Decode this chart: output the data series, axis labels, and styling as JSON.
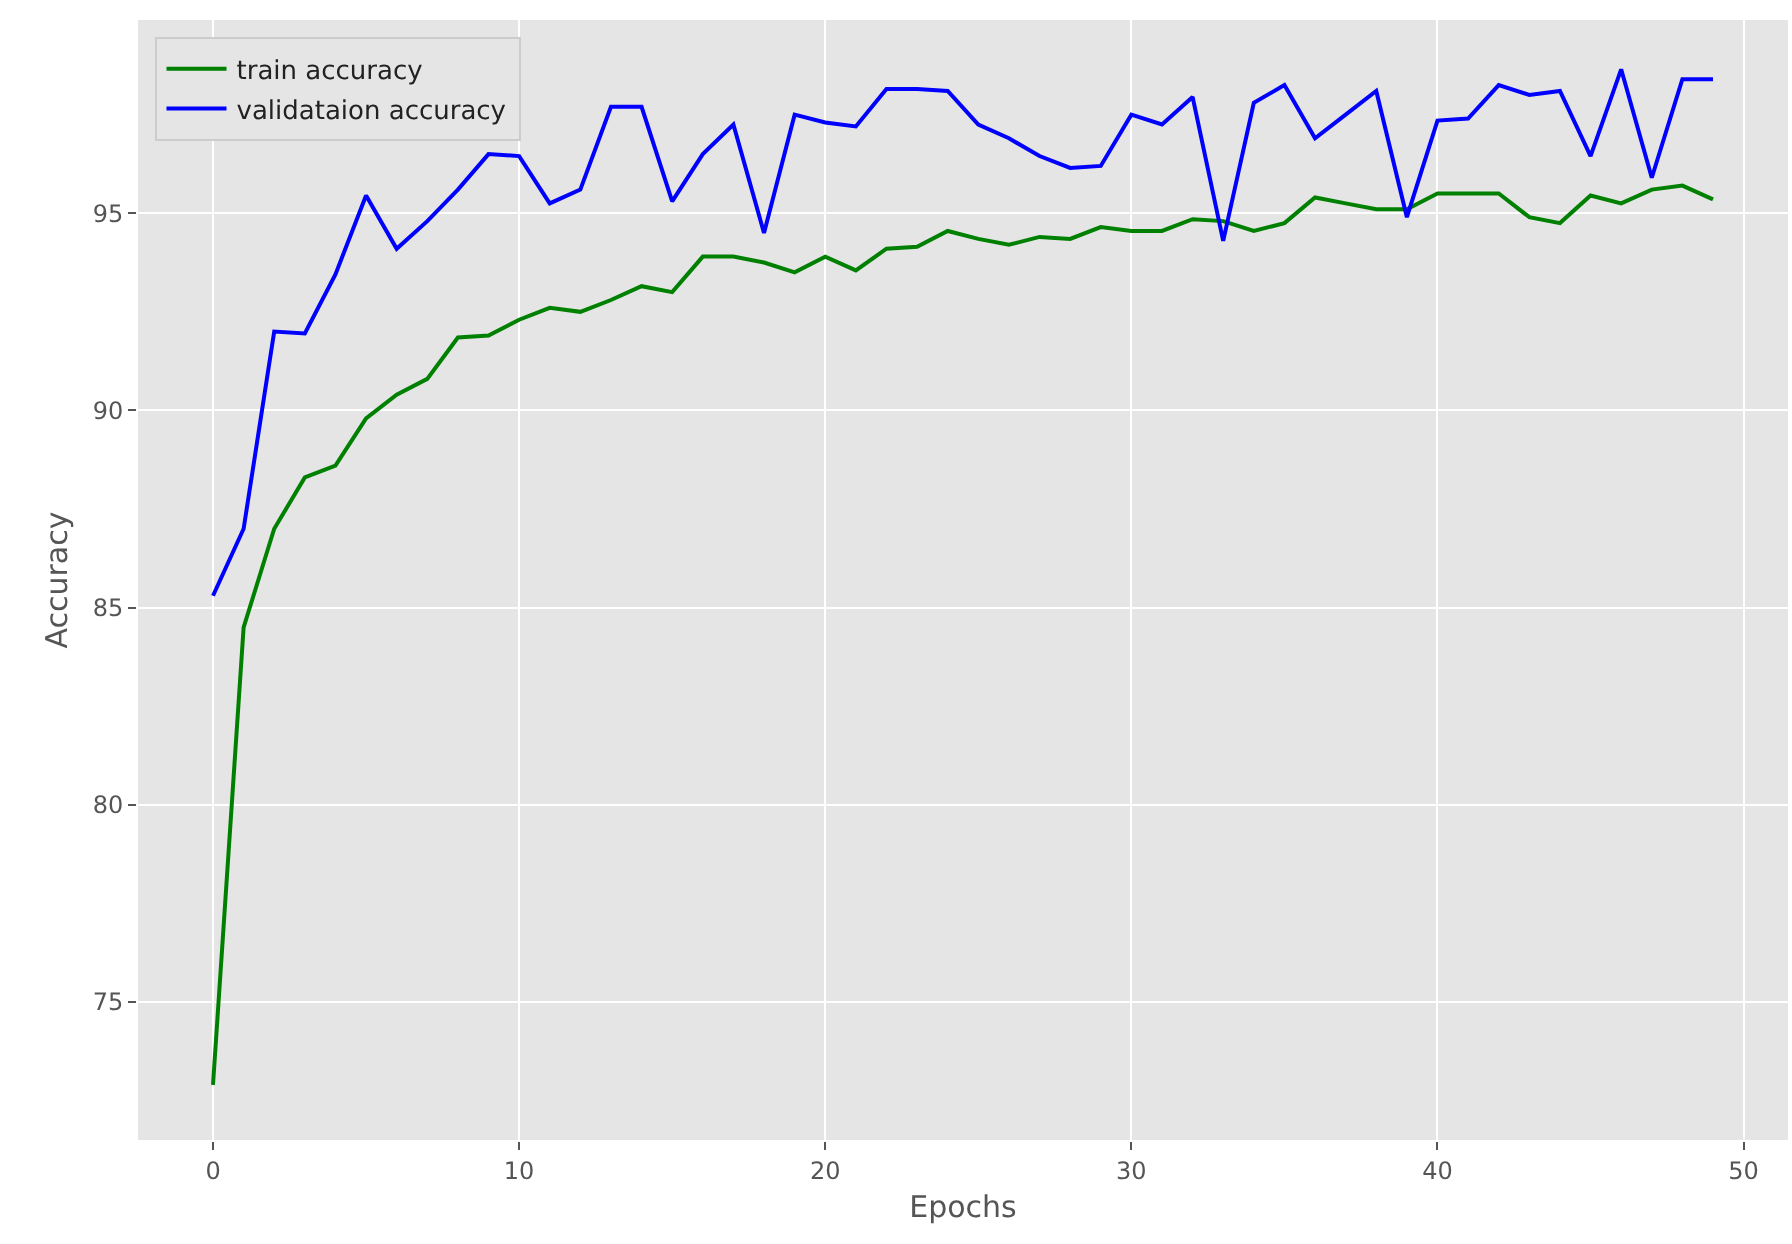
{
  "chart_data": {
    "type": "line",
    "xlabel": "Epochs",
    "ylabel": "Accuracy",
    "x": [
      0,
      1,
      2,
      3,
      4,
      5,
      6,
      7,
      8,
      9,
      10,
      11,
      12,
      13,
      14,
      15,
      16,
      17,
      18,
      19,
      20,
      21,
      22,
      23,
      24,
      25,
      26,
      27,
      28,
      29,
      30,
      31,
      32,
      33,
      34,
      35,
      36,
      37,
      38,
      39,
      40,
      41,
      42,
      43,
      44,
      45,
      46,
      47,
      48,
      49
    ],
    "series": [
      {
        "name": "train accuracy",
        "color": "#008000",
        "values": [
          72.9,
          84.5,
          87.0,
          88.3,
          88.6,
          89.8,
          90.4,
          90.8,
          91.85,
          91.9,
          92.3,
          92.6,
          92.5,
          92.8,
          93.15,
          93.0,
          93.9,
          93.9,
          93.75,
          93.5,
          93.9,
          93.55,
          94.1,
          94.15,
          94.55,
          94.35,
          94.2,
          94.4,
          94.35,
          94.65,
          94.55,
          94.55,
          94.85,
          94.8,
          94.55,
          94.75,
          95.4,
          95.25,
          95.1,
          95.1,
          95.5,
          95.5,
          95.5,
          94.9,
          94.75,
          95.45,
          95.25,
          95.6,
          95.7,
          95.35
        ]
      },
      {
        "name": "validataion accuracy",
        "color": "#0000ff",
        "values": [
          85.3,
          87.0,
          92.0,
          91.95,
          93.45,
          95.45,
          94.1,
          94.8,
          95.6,
          96.5,
          96.45,
          95.25,
          95.6,
          97.7,
          97.7,
          95.3,
          96.5,
          97.25,
          94.5,
          97.5,
          97.3,
          97.2,
          98.15,
          98.15,
          98.1,
          97.25,
          96.9,
          96.45,
          96.15,
          96.2,
          97.5,
          97.25,
          97.95,
          94.3,
          97.8,
          98.25,
          96.9,
          97.5,
          98.1,
          94.9,
          97.35,
          97.4,
          98.25,
          98.0,
          98.1,
          96.45,
          98.65,
          95.9,
          98.4,
          98.4
        ]
      }
    ],
    "xlim": [
      -2.45,
      51.45
    ],
    "xticks": [
      0,
      10,
      20,
      30,
      40,
      50
    ],
    "ylim": [
      71.5,
      99.9
    ],
    "yticks": [
      75,
      80,
      85,
      90,
      95
    ],
    "grid": true,
    "legend": "top left",
    "marker": "none",
    "line_style": "solid"
  }
}
